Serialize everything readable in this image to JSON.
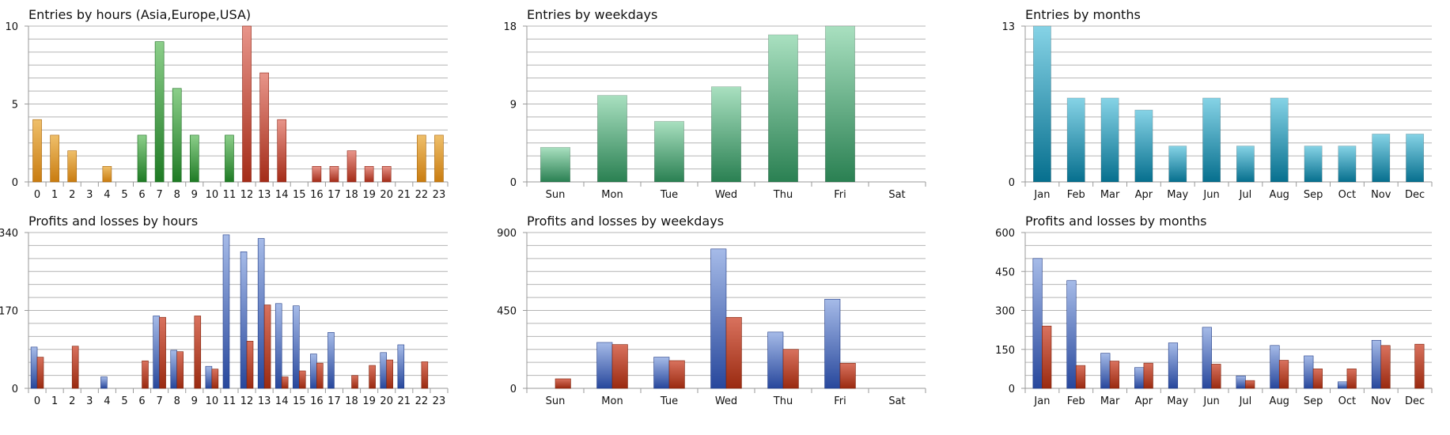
{
  "colors": {
    "hours_entries": {
      "orange": "#d4881e",
      "green": "#2f8a36",
      "red": "#b8392a"
    },
    "weekday_entries": "#3a9a68",
    "month_entries": "#1e8aa6",
    "profit": "#3a62b0",
    "loss": "#b8391f"
  },
  "chart_data": [
    {
      "type": "bar",
      "title": "Entries by hours (Asia,Europe,USA)",
      "categories": [
        "0",
        "1",
        "2",
        "3",
        "4",
        "5",
        "6",
        "7",
        "8",
        "9",
        "10",
        "11",
        "12",
        "13",
        "14",
        "15",
        "16",
        "17",
        "18",
        "19",
        "20",
        "21",
        "22",
        "23"
      ],
      "values": [
        4,
        3,
        2,
        0,
        1,
        0,
        3,
        9,
        6,
        3,
        0,
        3,
        10,
        7,
        4,
        0,
        1,
        1,
        2,
        1,
        1,
        0,
        3,
        3
      ],
      "sessions": [
        "orange",
        "orange",
        "orange",
        "orange",
        "orange",
        "orange",
        "green",
        "green",
        "green",
        "green",
        "green",
        "green",
        "red",
        "red",
        "red",
        "red",
        "red",
        "red",
        "red",
        "red",
        "red",
        "red",
        "orange",
        "orange"
      ],
      "yticks": [
        "0",
        "5",
        "10"
      ],
      "ylim": [
        0,
        10
      ]
    },
    {
      "type": "bar",
      "title": "Entries by weekdays",
      "categories": [
        "Sun",
        "Mon",
        "Tue",
        "Wed",
        "Thu",
        "Fri",
        "Sat"
      ],
      "values": [
        4,
        10,
        7,
        11,
        17,
        18,
        0
      ],
      "yticks": [
        "0",
        "9",
        "18"
      ],
      "ylim": [
        0,
        18
      ]
    },
    {
      "type": "bar",
      "title": "Entries by months",
      "categories": [
        "Jan",
        "Feb",
        "Mar",
        "Apr",
        "May",
        "Jun",
        "Jul",
        "Aug",
        "Sep",
        "Oct",
        "Nov",
        "Dec"
      ],
      "values": [
        13,
        7,
        7,
        6,
        3,
        7,
        3,
        7,
        3,
        3,
        4,
        4
      ],
      "yticks": [
        "0",
        "13"
      ],
      "ylim": [
        0,
        13
      ]
    },
    {
      "type": "bar",
      "title": "Profits and losses by hours",
      "categories": [
        "0",
        "1",
        "2",
        "3",
        "4",
        "5",
        "6",
        "7",
        "8",
        "9",
        "10",
        "11",
        "12",
        "13",
        "14",
        "15",
        "16",
        "17",
        "18",
        "19",
        "20",
        "21",
        "22",
        "23"
      ],
      "series": [
        {
          "name": "Profits",
          "values": [
            90,
            0,
            0,
            0,
            25,
            0,
            0,
            158,
            83,
            0,
            48,
            335,
            298,
            327,
            185,
            180,
            75,
            122,
            0,
            0,
            78,
            95,
            0,
            0
          ]
        },
        {
          "name": "Losses",
          "values": [
            68,
            0,
            92,
            0,
            0,
            0,
            60,
            155,
            80,
            158,
            42,
            0,
            103,
            182,
            25,
            38,
            55,
            0,
            28,
            50,
            62,
            0,
            58,
            0
          ]
        }
      ],
      "yticks": [
        "0",
        "170",
        "340"
      ],
      "ylim": [
        0,
        340
      ]
    },
    {
      "type": "bar",
      "title": "Profits and losses by weekdays",
      "categories": [
        "Sun",
        "Mon",
        "Tue",
        "Wed",
        "Thu",
        "Fri",
        "Sat"
      ],
      "series": [
        {
          "name": "Profits",
          "values": [
            0,
            265,
            180,
            805,
            325,
            515,
            0
          ]
        },
        {
          "name": "Losses",
          "values": [
            55,
            253,
            160,
            410,
            225,
            145,
            0
          ]
        }
      ],
      "yticks": [
        "0",
        "450",
        "900"
      ],
      "ylim": [
        0,
        900
      ]
    },
    {
      "type": "bar",
      "title": "Profits and losses by months",
      "categories": [
        "Jan",
        "Feb",
        "Mar",
        "Apr",
        "May",
        "Jun",
        "Jul",
        "Aug",
        "Sep",
        "Oct",
        "Nov",
        "Dec"
      ],
      "series": [
        {
          "name": "Profits",
          "values": [
            500,
            415,
            135,
            80,
            175,
            235,
            48,
            165,
            125,
            25,
            185,
            0
          ]
        },
        {
          "name": "Losses",
          "values": [
            240,
            88,
            105,
            97,
            0,
            93,
            30,
            108,
            75,
            75,
            165,
            170
          ]
        }
      ],
      "yticks": [
        "0",
        "150",
        "300",
        "450",
        "600"
      ],
      "ylim": [
        0,
        600
      ]
    }
  ]
}
